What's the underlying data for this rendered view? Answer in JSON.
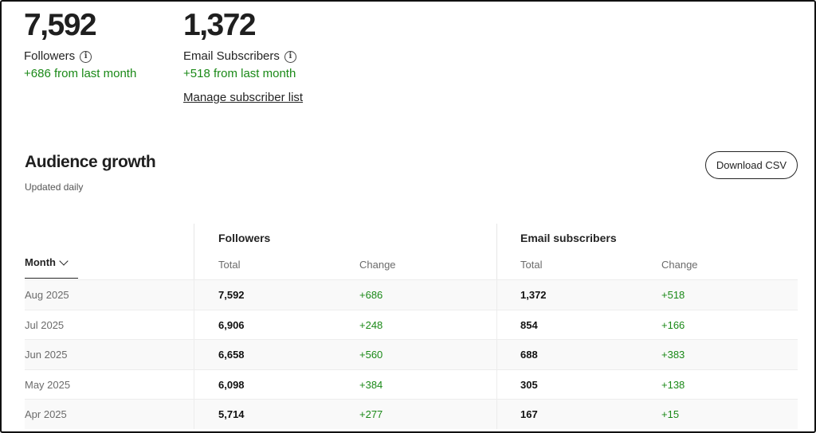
{
  "stats": {
    "followers": {
      "value": "7,592",
      "label": "Followers",
      "info_icon": "info-icon",
      "change": "+686 from last month"
    },
    "subscribers": {
      "value": "1,372",
      "label": "Email Subscribers",
      "info_icon": "info-icon",
      "change": "+518 from last month",
      "manage_link": "Manage subscriber list"
    }
  },
  "audience": {
    "title": "Audience growth",
    "subtitle": "Updated daily",
    "download_label": "Download CSV",
    "table": {
      "month_label": "Month",
      "sort_icon": "chevron-down-icon",
      "groups": {
        "followers": "Followers",
        "subscribers": "Email subscribers"
      },
      "columns": {
        "total": "Total",
        "change": "Change"
      },
      "rows": [
        {
          "month": "Aug 2025",
          "followers_total": "7,592",
          "followers_change": "+686",
          "subscribers_total": "1,372",
          "subscribers_change": "+518"
        },
        {
          "month": "Jul 2025",
          "followers_total": "6,906",
          "followers_change": "+248",
          "subscribers_total": "854",
          "subscribers_change": "+166"
        },
        {
          "month": "Jun 2025",
          "followers_total": "6,658",
          "followers_change": "+560",
          "subscribers_total": "688",
          "subscribers_change": "+383"
        },
        {
          "month": "May 2025",
          "followers_total": "6,098",
          "followers_change": "+384",
          "subscribers_total": "305",
          "subscribers_change": "+138"
        },
        {
          "month": "Apr 2025",
          "followers_total": "5,714",
          "followers_change": "+277",
          "subscribers_total": "167",
          "subscribers_change": "+15"
        }
      ]
    }
  },
  "colors": {
    "positive": "#1a8917",
    "text": "#242424",
    "muted": "#6b6b6b",
    "row_shade": "#f9f9f9"
  }
}
